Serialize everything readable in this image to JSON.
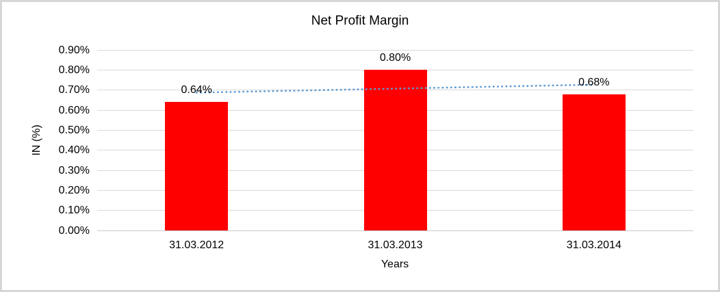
{
  "chart_data": {
    "type": "bar",
    "title": "Net Profit Margin",
    "categories": [
      "31.03.2012",
      "31.03.2013",
      "31.03.2014"
    ],
    "values": [
      0.64,
      0.8,
      0.68
    ],
    "data_labels": [
      "0.64%",
      "0.80%",
      "0.68%"
    ],
    "xlabel": "Years",
    "ylabel": "IN (%)",
    "ylim": [
      0,
      0.9
    ],
    "ytick_labels": [
      "0.00%",
      "0.10%",
      "0.20%",
      "0.30%",
      "0.40%",
      "0.50%",
      "0.60%",
      "0.70%",
      "0.80%",
      "0.90%"
    ],
    "grid": true,
    "legend_position": "none",
    "bar_color": "#ff0000",
    "gridline_color": "#d9d9d9",
    "text_color": "#000000",
    "trendline": {
      "type": "linear",
      "style": "dotted",
      "color": "#5b9bd5",
      "start_value": 0.687,
      "end_value": 0.727
    }
  }
}
